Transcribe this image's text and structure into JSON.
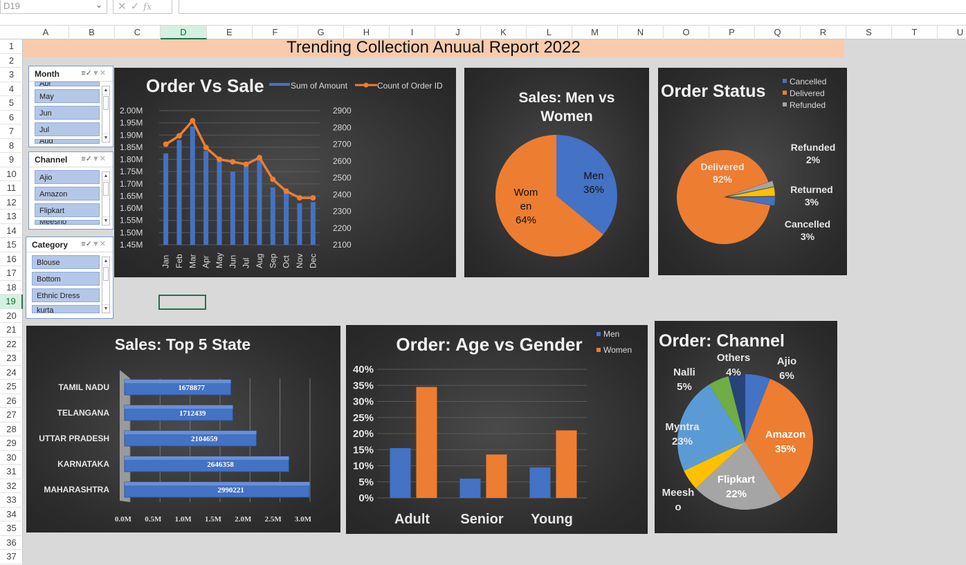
{
  "formula_bar": {
    "name_box": "D19",
    "fx_label": "fx"
  },
  "columns": [
    "A",
    "B",
    "C",
    "D",
    "E",
    "F",
    "G",
    "H",
    "I",
    "J",
    "K",
    "L",
    "M",
    "N",
    "O",
    "P",
    "Q",
    "R",
    "S",
    "T",
    "U"
  ],
  "rows": [
    "1",
    "2",
    "3",
    "4",
    "5",
    "6",
    "7",
    "8",
    "9",
    "10",
    "11",
    "12",
    "13",
    "14",
    "15",
    "16",
    "17",
    "18",
    "19",
    "20",
    "21",
    "22",
    "23",
    "24",
    "25",
    "26",
    "27",
    "28",
    "29",
    "30",
    "31",
    "32",
    "33",
    "34",
    "35",
    "36",
    "37"
  ],
  "selected_column": "D",
  "selected_row": "19",
  "report_title": "Trending Collection Anuual Report 2022",
  "slicers": {
    "month": {
      "title": "Month",
      "items": [
        "Apr",
        "May",
        "Jun",
        "Jul",
        "Aug"
      ]
    },
    "channel": {
      "title": "Channel",
      "items": [
        "Ajio",
        "Amazon",
        "Flipkart",
        "Meesho"
      ]
    },
    "category": {
      "title": "Category",
      "items": [
        "Blouse",
        "Bottom",
        "Ethnic Dress",
        "kurta"
      ]
    }
  },
  "chart_data": [
    {
      "id": "order_vs_sale",
      "type": "bar",
      "title": "Order Vs Sale",
      "categories": [
        "Jan",
        "Feb",
        "Mar",
        "Apr",
        "May",
        "Jun",
        "Jul",
        "Aug",
        "Sep",
        "Oct",
        "Nov",
        "Dec"
      ],
      "series": [
        {
          "name": "Sum of Amount",
          "values": [
            1825000,
            1880000,
            1935000,
            1835000,
            1810000,
            1750000,
            1785000,
            1800000,
            1685000,
            1670000,
            1620000,
            1625000
          ]
        },
        {
          "name": "Count of Order ID",
          "axis": "secondary",
          "values": [
            2700,
            2750,
            2840,
            2680,
            2610,
            2595,
            2580,
            2620,
            2490,
            2420,
            2380,
            2380
          ]
        }
      ],
      "y_ticks": [
        "2.00M",
        "1.95M",
        "1.90M",
        "1.85M",
        "1.80M",
        "1.75M",
        "1.70M",
        "1.65M",
        "1.60M",
        "1.55M",
        "1.50M",
        "1.45M"
      ],
      "ylim": [
        1450000,
        2000000
      ],
      "y2_ticks": [
        "2900",
        "2800",
        "2700",
        "2600",
        "2500",
        "2400",
        "2300",
        "2200",
        "2100"
      ],
      "y2lim": [
        2100,
        2900
      ],
      "legend": "top",
      "colors": [
        "#4472c4",
        "#ed7d31"
      ]
    },
    {
      "id": "sales_men_women",
      "type": "pie",
      "title_lines": [
        "Sales: Men vs",
        "Women"
      ],
      "slices": [
        {
          "label": "Men",
          "label_text": "Men\n36%",
          "value": 36,
          "color": "#4472c4"
        },
        {
          "label": "Women",
          "label_text": "Wom\nen\n64%",
          "value": 64,
          "color": "#ed7d31"
        }
      ]
    },
    {
      "id": "order_status",
      "type": "pie",
      "title": "Order Status",
      "legend": "top-right",
      "legend_items": [
        {
          "name": "Cancelled",
          "color": "#4472c4"
        },
        {
          "name": "Delivered",
          "color": "#ed7d31"
        },
        {
          "name": "Refunded",
          "color": "#a5a5a5"
        }
      ],
      "slices": [
        {
          "label": "Delivered",
          "value": 92,
          "pct": "92%",
          "color": "#ed7d31"
        },
        {
          "label": "Refunded",
          "value": 2,
          "pct": "2%",
          "color": "#a5a5a5"
        },
        {
          "label": "Returned",
          "value": 3,
          "pct": "3%",
          "color": "#ffc000"
        },
        {
          "label": "Cancelled",
          "value": 3,
          "pct": "3%",
          "color": "#4472c4"
        }
      ]
    },
    {
      "id": "sales_top5_state",
      "type": "bar",
      "orientation": "horizontal",
      "title": "Sales: Top 5 State",
      "categories": [
        "TAMIL NADU",
        "TELANGANA",
        "UTTAR PRADESH",
        "KARNATAKA",
        "MAHARASHTRA"
      ],
      "values": [
        1678877,
        1712439,
        2104659,
        2646358,
        2990221
      ],
      "x_ticks": [
        "0.0M",
        "0.5M",
        "1.0M",
        "1.5M",
        "2.0M",
        "2.5M",
        "3.0M"
      ],
      "xlim": [
        0,
        3000000
      ],
      "color": "#4472c4"
    },
    {
      "id": "order_age_gender",
      "type": "bar",
      "title": "Order: Age vs Gender",
      "categories": [
        "Adult",
        "Senior",
        "Young"
      ],
      "series": [
        {
          "name": "Men",
          "values": [
            15.5,
            6,
            9.5
          ]
        },
        {
          "name": "Women",
          "values": [
            34.5,
            13.5,
            21
          ]
        }
      ],
      "y_ticks": [
        "40%",
        "35%",
        "30%",
        "25%",
        "20%",
        "15%",
        "10%",
        "5%",
        "0%"
      ],
      "ylim": [
        0,
        40
      ],
      "legend": "top-right",
      "colors": [
        "#4472c4",
        "#ed7d31"
      ]
    },
    {
      "id": "order_channel",
      "type": "pie",
      "title": "Order: Channel",
      "slices": [
        {
          "label": "Ajio",
          "value": 6,
          "pct": "6%",
          "color": "#4472c4"
        },
        {
          "label": "Amazon",
          "value": 35,
          "pct": "35%",
          "color": "#ed7d31"
        },
        {
          "label": "Flipkart",
          "value": 22,
          "pct": "22%",
          "color": "#a5a5a5"
        },
        {
          "label": "Meesho",
          "label_text": "Meesh\no",
          "value": 5,
          "pct": "",
          "color": "#ffc000"
        },
        {
          "label": "Myntra",
          "value": 23,
          "pct": "23%",
          "color": "#5b9bd5"
        },
        {
          "label": "Nalli",
          "value": 5,
          "pct": "5%",
          "color": "#70ad47"
        },
        {
          "label": "Others",
          "value": 4,
          "pct": "4%",
          "color": "#264478"
        }
      ]
    }
  ]
}
